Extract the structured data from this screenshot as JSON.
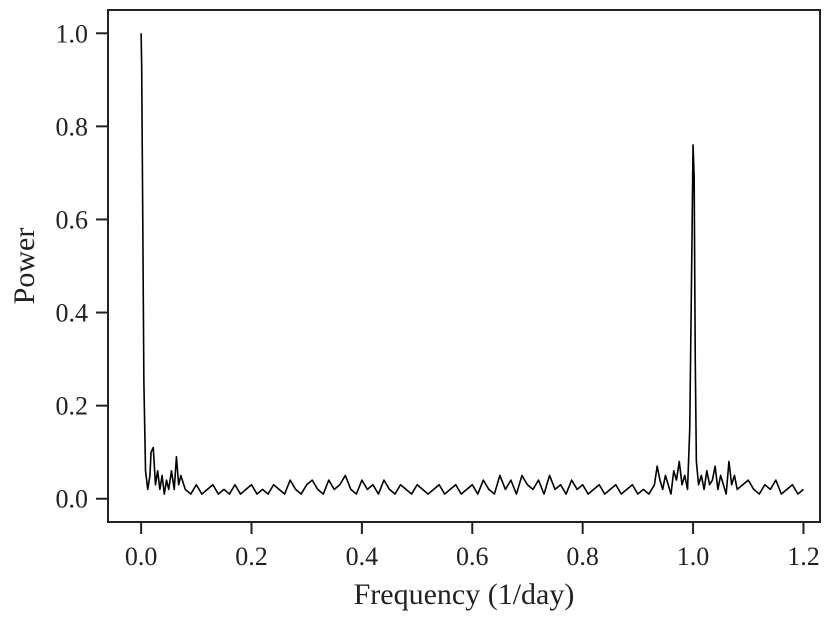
{
  "chart_data": {
    "type": "line",
    "title": "",
    "xlabel": "Frequency (1/day)",
    "ylabel": "Power",
    "xlim": [
      -0.06,
      1.23
    ],
    "ylim": [
      -0.05,
      1.05
    ],
    "xticks": [
      0.0,
      0.2,
      0.4,
      0.6,
      0.8,
      1.0,
      1.2
    ],
    "xtick_labels": [
      "0.0",
      "0.2",
      "0.4",
      "0.6",
      "0.8",
      "1.0",
      "1.2"
    ],
    "yticks": [
      0.0,
      0.2,
      0.4,
      0.6,
      0.8,
      1.0
    ],
    "ytick_labels": [
      "0.0",
      "0.2",
      "0.4",
      "0.6",
      "0.8",
      "1.0"
    ],
    "grid": false,
    "legend": "none",
    "line_color": "#000000",
    "series": [
      {
        "x": [
          0.0,
          0.001,
          0.003,
          0.005,
          0.008,
          0.012,
          0.016,
          0.018,
          0.022,
          0.026,
          0.03,
          0.034,
          0.038,
          0.042,
          0.046,
          0.05,
          0.055,
          0.06,
          0.064,
          0.068,
          0.072,
          0.08,
          0.09,
          0.1,
          0.11,
          0.12,
          0.13,
          0.14,
          0.15,
          0.16,
          0.17,
          0.18,
          0.19,
          0.2,
          0.21,
          0.22,
          0.23,
          0.24,
          0.25,
          0.26,
          0.27,
          0.28,
          0.29,
          0.3,
          0.31,
          0.32,
          0.33,
          0.34,
          0.35,
          0.36,
          0.37,
          0.38,
          0.39,
          0.4,
          0.41,
          0.42,
          0.43,
          0.44,
          0.45,
          0.46,
          0.47,
          0.48,
          0.49,
          0.5,
          0.51,
          0.52,
          0.53,
          0.54,
          0.55,
          0.56,
          0.57,
          0.58,
          0.59,
          0.6,
          0.61,
          0.62,
          0.63,
          0.64,
          0.65,
          0.66,
          0.67,
          0.68,
          0.69,
          0.7,
          0.71,
          0.72,
          0.73,
          0.74,
          0.75,
          0.76,
          0.77,
          0.78,
          0.79,
          0.8,
          0.81,
          0.82,
          0.83,
          0.84,
          0.85,
          0.86,
          0.87,
          0.88,
          0.89,
          0.9,
          0.91,
          0.92,
          0.93,
          0.935,
          0.94,
          0.945,
          0.95,
          0.955,
          0.96,
          0.965,
          0.97,
          0.975,
          0.98,
          0.985,
          0.99,
          0.994,
          0.997,
          1.0,
          1.002,
          1.004,
          1.006,
          1.01,
          1.015,
          1.02,
          1.025,
          1.03,
          1.035,
          1.04,
          1.045,
          1.05,
          1.055,
          1.06,
          1.065,
          1.07,
          1.075,
          1.08,
          1.09,
          1.1,
          1.11,
          1.12,
          1.13,
          1.14,
          1.15,
          1.16,
          1.17,
          1.18,
          1.19,
          1.2
        ],
        "y": [
          1.0,
          0.93,
          0.6,
          0.25,
          0.06,
          0.02,
          0.05,
          0.1,
          0.11,
          0.03,
          0.06,
          0.02,
          0.05,
          0.01,
          0.04,
          0.02,
          0.06,
          0.02,
          0.09,
          0.03,
          0.05,
          0.02,
          0.01,
          0.03,
          0.01,
          0.02,
          0.03,
          0.01,
          0.02,
          0.01,
          0.03,
          0.01,
          0.02,
          0.03,
          0.01,
          0.02,
          0.01,
          0.03,
          0.02,
          0.01,
          0.04,
          0.02,
          0.01,
          0.03,
          0.04,
          0.02,
          0.01,
          0.04,
          0.02,
          0.03,
          0.05,
          0.02,
          0.01,
          0.04,
          0.02,
          0.03,
          0.01,
          0.04,
          0.02,
          0.01,
          0.03,
          0.02,
          0.01,
          0.03,
          0.02,
          0.01,
          0.02,
          0.03,
          0.01,
          0.02,
          0.03,
          0.01,
          0.02,
          0.03,
          0.01,
          0.04,
          0.02,
          0.01,
          0.05,
          0.02,
          0.04,
          0.01,
          0.05,
          0.03,
          0.02,
          0.04,
          0.01,
          0.05,
          0.02,
          0.03,
          0.01,
          0.04,
          0.02,
          0.03,
          0.01,
          0.02,
          0.03,
          0.01,
          0.02,
          0.03,
          0.01,
          0.02,
          0.03,
          0.01,
          0.02,
          0.01,
          0.03,
          0.07,
          0.04,
          0.02,
          0.05,
          0.03,
          0.01,
          0.06,
          0.04,
          0.08,
          0.03,
          0.05,
          0.02,
          0.15,
          0.45,
          0.76,
          0.69,
          0.3,
          0.08,
          0.03,
          0.05,
          0.02,
          0.06,
          0.03,
          0.04,
          0.07,
          0.02,
          0.05,
          0.03,
          0.01,
          0.08,
          0.03,
          0.05,
          0.02,
          0.03,
          0.04,
          0.02,
          0.01,
          0.03,
          0.02,
          0.04,
          0.01,
          0.02,
          0.03,
          0.01,
          0.02
        ]
      }
    ]
  }
}
